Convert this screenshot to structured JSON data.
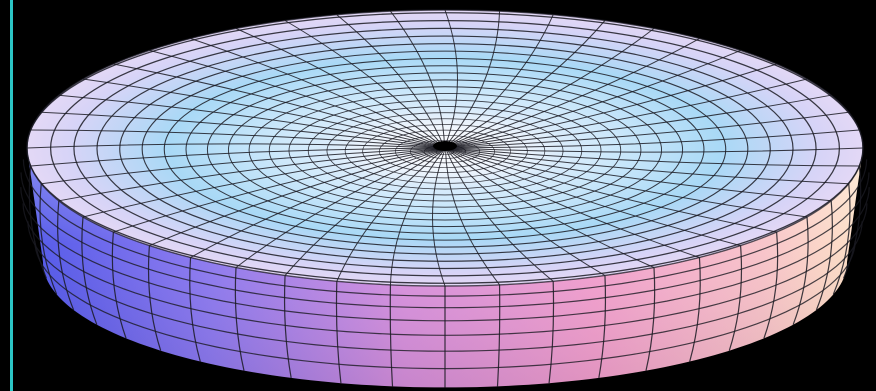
{
  "figure": {
    "subject": "torus-surface-plot",
    "background_color": "#000000",
    "accent_bar_color": "#2cc6c6",
    "wireframe_color": "#1a1a22",
    "color_stops": {
      "blue": "#5a5cf0",
      "light_blue": "#bfe4fb",
      "pale": "#f4f2fb",
      "pink": "#f3a3d4",
      "violet": "#b08af2",
      "peach": "#fcd6c2"
    },
    "grid": {
      "radial_lines": 48,
      "rings_top": 22,
      "rings_side": 7
    }
  }
}
